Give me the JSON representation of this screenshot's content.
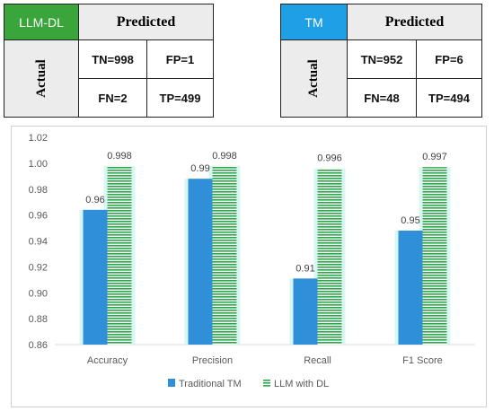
{
  "matrices": [
    {
      "label": "LLM-DL",
      "label_color": "#3aa53a",
      "predicted": "Predicted",
      "actual": "Actual",
      "tn": "TN=998",
      "fp": "FP=1",
      "fn": "FN=2",
      "tp": "TP=499"
    },
    {
      "label": "TM",
      "label_color": "#1e9fe6",
      "predicted": "Predicted",
      "actual": "Actual",
      "tn": "TN=952",
      "fp": "FP=6",
      "fn": "FN=48",
      "tp": "TP=494"
    }
  ],
  "chart_data": {
    "type": "bar",
    "categories": [
      "Accuracy",
      "Precision",
      "Recall",
      "F1 Score"
    ],
    "series": [
      {
        "name": "Traditional TM",
        "values": [
          0.964,
          0.988,
          0.911,
          0.948
        ],
        "labels": [
          "0.96",
          "0.99",
          "0.91",
          "0.95"
        ],
        "color": "#2f8fd8",
        "pattern": "solid"
      },
      {
        "name": "LLM with DL",
        "values": [
          0.998,
          0.998,
          0.996,
          0.997
        ],
        "labels": [
          "0.998",
          "0.998",
          "0.996",
          "0.997"
        ],
        "color": "#2aa84a",
        "pattern": "horizontal-stripes"
      }
    ],
    "ylim": [
      0.86,
      1.02
    ],
    "yticks": [
      "0.86",
      "0.88",
      "0.90",
      "0.92",
      "0.94",
      "0.96",
      "0.98",
      "1.00",
      "1.02"
    ],
    "grid": false,
    "legend": "bottom-center",
    "xlabel": "",
    "ylabel": "",
    "title": ""
  }
}
